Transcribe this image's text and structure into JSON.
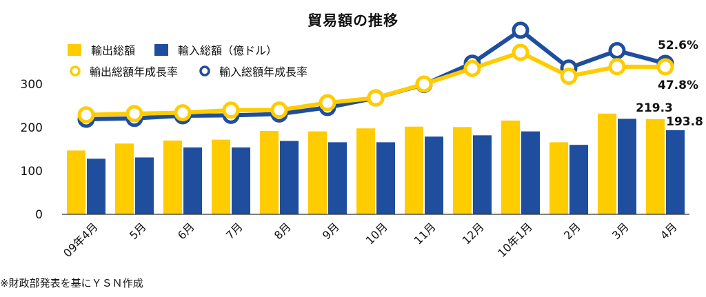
{
  "chart_data": {
    "type": "bar",
    "title": "貿易額の推移",
    "categories": [
      "09年4月",
      "5月",
      "6月",
      "7月",
      "8月",
      "9月",
      "10月",
      "11月",
      "12月",
      "10年1月",
      "2月",
      "3月",
      "4月"
    ],
    "ylim": [
      0,
      350
    ],
    "yticks": [
      0,
      100,
      200,
      300
    ],
    "grid": false,
    "legend_position": "top-left",
    "series": [
      {
        "name": "輸出総額",
        "kind": "bar",
        "color": "#FFCC00",
        "values": [
          147,
          163,
          170,
          172,
          192,
          191,
          198,
          202,
          201,
          216,
          166,
          232,
          219.3
        ]
      },
      {
        "name": "輸入総額（億ドル）",
        "kind": "bar",
        "color": "#1F4E9E",
        "values": [
          128,
          131,
          154,
          154,
          169,
          166,
          166,
          179,
          182,
          191,
          160,
          220,
          193.8
        ]
      },
      {
        "name": "輸出総額年成長率",
        "kind": "line",
        "color": "#FFCC00",
        "values": [
          229,
          232,
          234,
          240,
          240,
          257,
          268,
          300,
          336,
          373,
          318,
          340,
          47.8
        ]
      },
      {
        "name": "輸入総額年成長率",
        "kind": "line",
        "color": "#1F4E9E",
        "values": [
          219,
          221,
          227,
          228,
          231,
          246,
          268,
          299,
          348,
          424,
          337,
          377,
          52.6
        ]
      }
    ],
    "line_series_scale_note_values": {
      "輸出総額年成長率_last_label": "47.8%",
      "輸入総額年成長率_last_label": "52.6%"
    },
    "data_labels": {
      "export_last": "219.3",
      "import_last": "193.8",
      "export_growth_last": "47.8%",
      "import_growth_last": "52.6%"
    }
  },
  "legend": {
    "export_total": "輸出総額",
    "import_total": "輸入総額（億ドル）",
    "export_growth": "輸出総額年成長率",
    "import_growth": "輸入総額年成長率"
  },
  "source": "※財政部発表を基にＹＳＮ作成",
  "colors": {
    "yellow": "#FFCC00",
    "blue": "#1F4E9E",
    "axis": "#333333"
  }
}
